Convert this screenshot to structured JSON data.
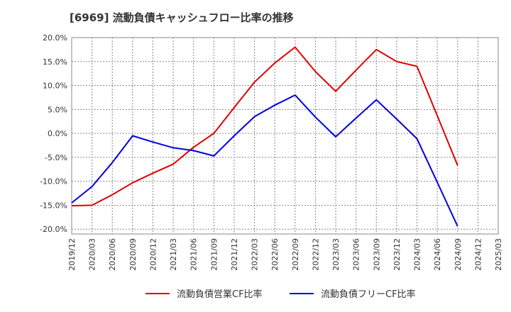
{
  "chart_data": {
    "type": "line",
    "title": "[6969]  流動負債キャッシュフロー比率の推移",
    "x_labels": [
      "2019/12",
      "2020/03",
      "2020/06",
      "2020/09",
      "2020/12",
      "2021/03",
      "2021/06",
      "2021/09",
      "2021/12",
      "2022/03",
      "2022/06",
      "2022/09",
      "2022/12",
      "2023/03",
      "2023/06",
      "2023/09",
      "2023/12",
      "2024/03",
      "2024/06",
      "2024/09",
      "2024/12",
      "2025/03"
    ],
    "y_ticks": [
      "20.0%",
      "15.0%",
      "10.0%",
      "5.0%",
      "0.0%",
      "-5.0%",
      "-10.0%",
      "-15.0%",
      "-20.0%"
    ],
    "ylim": [
      -21,
      20
    ],
    "grid": true,
    "legend_position": "bottom",
    "series": [
      {
        "name": "流動負債営業CF比率",
        "color": "#e00000",
        "values": [
          -15.1,
          -15.0,
          -12.8,
          -10.3,
          -8.3,
          -6.4,
          -2.9,
          0.0,
          5.4,
          10.7,
          14.7,
          18.0,
          12.9,
          8.8,
          13.2,
          17.5,
          15.0,
          14.0,
          3.7,
          -6.7,
          null,
          null
        ]
      },
      {
        "name": "流動負債フリーCF比率",
        "color": "#0000e0",
        "values": [
          -14.5,
          -11.1,
          -6.1,
          -0.5,
          -1.8,
          -3.0,
          -3.6,
          -4.7,
          -0.5,
          3.5,
          5.9,
          8.0,
          3.4,
          -0.7,
          3.2,
          7.0,
          3.0,
          -1.1,
          -10.2,
          -19.4,
          null,
          null
        ]
      }
    ]
  }
}
